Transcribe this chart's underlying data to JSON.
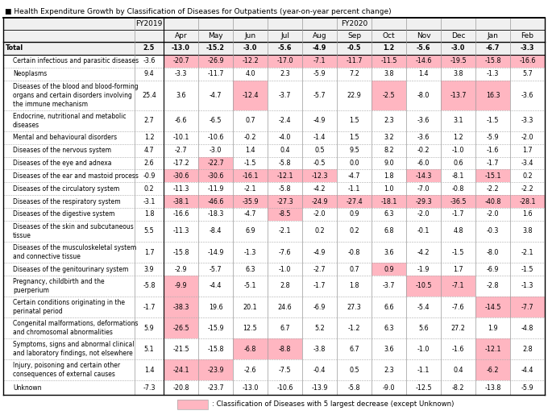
{
  "title": "■ Health Expenditure Growth by Classification of Diseases for Outpatients (year-on-year percent change)",
  "months": [
    "Apr",
    "May",
    "Jun",
    "Jul",
    "Aug",
    "Sep",
    "Oct",
    "Nov",
    "Dec",
    "Jan",
    "Feb"
  ],
  "rows": [
    {
      "label": "Total",
      "fy2019": "2.5",
      "fy2020": [
        "-13.0",
        "-15.2",
        "-3.0",
        "-5.6",
        "-4.9",
        "-0.5",
        "1.2",
        "-5.6",
        "-3.0",
        "-6.7",
        "-3.3"
      ],
      "is_total": true
    },
    {
      "label": "Certain infectious and parasitic diseases",
      "fy2019": "-3.6",
      "fy2020": [
        "-20.7",
        "-26.9",
        "-12.2",
        "-17.0",
        "-7.1",
        "-11.7",
        "-11.5",
        "-14.6",
        "-19.5",
        "-15.8",
        "-16.6"
      ],
      "is_total": false
    },
    {
      "label": "Neoplasms",
      "fy2019": "9.4",
      "fy2020": [
        "-3.3",
        "-11.7",
        "4.0",
        "2.3",
        "-5.9",
        "7.2",
        "3.8",
        "1.4",
        "3.8",
        "-1.3",
        "5.7"
      ],
      "is_total": false
    },
    {
      "label": "Diseases of the blood and blood-forming\norgans and certain disorders involving\nthe immune mechanism",
      "fy2019": "25.4",
      "fy2020": [
        "3.6",
        "-4.7",
        "-12.4",
        "-3.7",
        "-5.7",
        "22.9",
        "-2.5",
        "-8.0",
        "-13.7",
        "16.3",
        "-3.6"
      ],
      "is_total": false
    },
    {
      "label": "Endocrine, nutritional and metabolic\ndiseases",
      "fy2019": "2.7",
      "fy2020": [
        "-6.6",
        "-6.5",
        "0.7",
        "-2.4",
        "-4.9",
        "1.5",
        "2.3",
        "-3.6",
        "3.1",
        "-1.5",
        "-3.3"
      ],
      "is_total": false
    },
    {
      "label": "Mental and behavioural disorders",
      "fy2019": "1.2",
      "fy2020": [
        "-10.1",
        "-10.6",
        "-0.2",
        "-4.0",
        "-1.4",
        "1.5",
        "3.2",
        "-3.6",
        "1.2",
        "-5.9",
        "-2.0"
      ],
      "is_total": false
    },
    {
      "label": "Diseases of the nervous system",
      "fy2019": "4.7",
      "fy2020": [
        "-2.7",
        "-3.0",
        "1.4",
        "0.4",
        "0.5",
        "9.5",
        "8.2",
        "-0.2",
        "-1.0",
        "-1.6",
        "1.7"
      ],
      "is_total": false
    },
    {
      "label": "Diseases of the eye and adnexa",
      "fy2019": "2.6",
      "fy2020": [
        "-17.2",
        "-22.7",
        "-1.5",
        "-5.8",
        "-0.5",
        "0.0",
        "9.0",
        "-6.0",
        "0.6",
        "-1.7",
        "-3.4"
      ],
      "is_total": false
    },
    {
      "label": "Diseases of the ear and mastoid process",
      "fy2019": "-0.9",
      "fy2020": [
        "-30.6",
        "-30.6",
        "-16.1",
        "-12.1",
        "-12.3",
        "-4.7",
        "1.8",
        "-14.3",
        "-8.1",
        "-15.1",
        "0.2"
      ],
      "is_total": false
    },
    {
      "label": "Diseases of the circulatory system",
      "fy2019": "0.2",
      "fy2020": [
        "-11.3",
        "-11.9",
        "-2.1",
        "-5.8",
        "-4.2",
        "-1.1",
        "1.0",
        "-7.0",
        "-0.8",
        "-2.2",
        "-2.2"
      ],
      "is_total": false
    },
    {
      "label": "Diseases of the respiratory system",
      "fy2019": "-3.1",
      "fy2020": [
        "-38.1",
        "-46.6",
        "-35.9",
        "-27.3",
        "-24.9",
        "-27.4",
        "-18.1",
        "-29.3",
        "-36.5",
        "-40.8",
        "-28.1"
      ],
      "is_total": false
    },
    {
      "label": "Diseases of the digestive system",
      "fy2019": "1.8",
      "fy2020": [
        "-16.6",
        "-18.3",
        "-4.7",
        "-8.5",
        "-2.0",
        "0.9",
        "6.3",
        "-2.0",
        "-1.7",
        "-2.0",
        "1.6"
      ],
      "is_total": false
    },
    {
      "label": "Diseases of the skin and subcutaneous\ntissue",
      "fy2019": "5.5",
      "fy2020": [
        "-11.3",
        "-8.4",
        "6.9",
        "-2.1",
        "0.2",
        "0.2",
        "6.8",
        "-0.1",
        "4.8",
        "-0.3",
        "3.8"
      ],
      "is_total": false
    },
    {
      "label": "Diseases of the musculoskeletal system\nand connective tissue",
      "fy2019": "1.7",
      "fy2020": [
        "-15.8",
        "-14.9",
        "-1.3",
        "-7.6",
        "-4.9",
        "-0.8",
        "3.6",
        "-4.2",
        "-1.5",
        "-8.0",
        "-2.1"
      ],
      "is_total": false
    },
    {
      "label": "Diseases of the genitourinary system",
      "fy2019": "3.9",
      "fy2020": [
        "-2.9",
        "-5.7",
        "6.3",
        "-1.0",
        "-2.7",
        "0.7",
        "0.9",
        "-1.9",
        "1.7",
        "-6.9",
        "-1.5"
      ],
      "is_total": false
    },
    {
      "label": "Pregnancy, childbirth and the\npuerperium",
      "fy2019": "-5.8",
      "fy2020": [
        "-9.9",
        "-4.4",
        "-5.1",
        "2.8",
        "-1.7",
        "1.8",
        "-3.7",
        "-10.5",
        "-7.1",
        "-2.8",
        "-1.3"
      ],
      "is_total": false
    },
    {
      "label": "Certain conditions originating in the\nperinatal period",
      "fy2019": "-1.7",
      "fy2020": [
        "-38.3",
        "19.6",
        "20.1",
        "24.6",
        "-6.9",
        "27.3",
        "6.6",
        "-5.4",
        "-7.6",
        "-14.5",
        "-7.7"
      ],
      "is_total": false
    },
    {
      "label": "Congenital malformations, deformations\nand chromosomal abnormalities",
      "fy2019": "5.9",
      "fy2020": [
        "-26.5",
        "-15.9",
        "12.5",
        "6.7",
        "5.2",
        "-1.2",
        "6.3",
        "5.6",
        "27.2",
        "1.9",
        "-4.8"
      ],
      "is_total": false
    },
    {
      "label": "Symptoms, signs and abnormal clinical\nand laboratory findings, not elsewhere",
      "fy2019": "5.1",
      "fy2020": [
        "-21.5",
        "-15.8",
        "-6.8",
        "-8.8",
        "-3.8",
        "6.7",
        "3.6",
        "-1.0",
        "-1.6",
        "-12.1",
        "2.8"
      ],
      "is_total": false
    },
    {
      "label": "Injury, poisoning and certain other\nconsequences of external causes",
      "fy2019": "1.4",
      "fy2020": [
        "-24.1",
        "-23.9",
        "-2.6",
        "-7.5",
        "-0.4",
        "0.5",
        "2.3",
        "-1.1",
        "0.4",
        "-6.2",
        "-4.4"
      ],
      "is_total": false
    },
    {
      "label": "Unknown",
      "fy2019": "-7.3",
      "fy2020": [
        "-20.8",
        "-23.7",
        "-13.0",
        "-10.6",
        "-13.9",
        "-5.8",
        "-9.0",
        "-12.5",
        "-8.2",
        "-13.8",
        "-5.9"
      ],
      "is_total": false
    }
  ],
  "highlight_color": "#FFB6C1",
  "legend_text": ": Classification of Diseases with 5 largest decrease (except Unknown)",
  "highlight_cells": {
    "1": [
      0,
      1,
      2,
      3,
      4,
      5,
      6,
      7,
      8,
      9,
      10
    ],
    "3": [
      2,
      6,
      8,
      9
    ],
    "7": [
      1
    ],
    "8": [
      0,
      1,
      2,
      3,
      4,
      7,
      9
    ],
    "10": [
      0,
      1,
      2,
      3,
      4,
      5,
      6,
      7,
      8,
      9,
      10
    ],
    "11": [
      3
    ],
    "14": [
      6
    ],
    "15": [
      0,
      7,
      8
    ],
    "16": [
      0,
      9,
      10
    ],
    "17": [
      0
    ],
    "18": [
      2,
      3,
      9
    ],
    "19": [
      0,
      1,
      9
    ],
    "20": []
  }
}
